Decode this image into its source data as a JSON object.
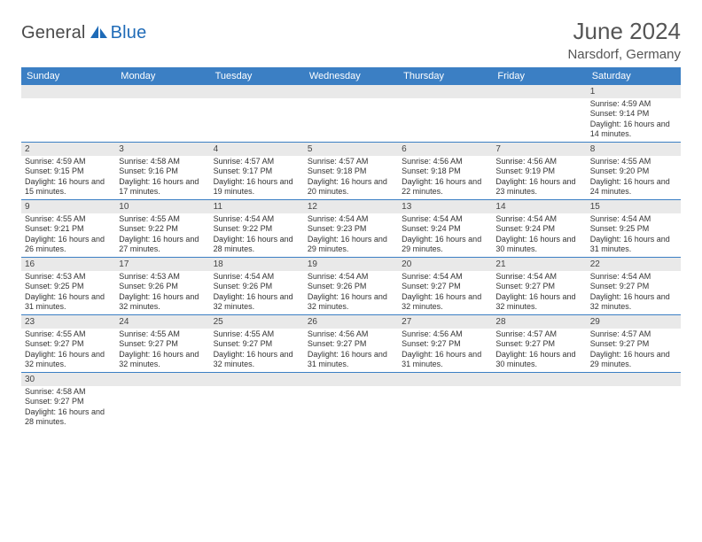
{
  "brand": {
    "text_dark": "General",
    "text_blue": "Blue"
  },
  "title": "June 2024",
  "location": "Narsdorf, Germany",
  "colors": {
    "header_bg": "#3b7fc4",
    "header_text": "#ffffff",
    "daynum_bg": "#e9e9e9",
    "divider": "#3b7fc4",
    "body_text": "#333333",
    "title_text": "#555555"
  },
  "day_headers": [
    "Sunday",
    "Monday",
    "Tuesday",
    "Wednesday",
    "Thursday",
    "Friday",
    "Saturday"
  ],
  "weeks": [
    [
      {
        "n": "",
        "sr": "",
        "ss": "",
        "dl": ""
      },
      {
        "n": "",
        "sr": "",
        "ss": "",
        "dl": ""
      },
      {
        "n": "",
        "sr": "",
        "ss": "",
        "dl": ""
      },
      {
        "n": "",
        "sr": "",
        "ss": "",
        "dl": ""
      },
      {
        "n": "",
        "sr": "",
        "ss": "",
        "dl": ""
      },
      {
        "n": "",
        "sr": "",
        "ss": "",
        "dl": ""
      },
      {
        "n": "1",
        "sr": "Sunrise: 4:59 AM",
        "ss": "Sunset: 9:14 PM",
        "dl": "Daylight: 16 hours and 14 minutes."
      }
    ],
    [
      {
        "n": "2",
        "sr": "Sunrise: 4:59 AM",
        "ss": "Sunset: 9:15 PM",
        "dl": "Daylight: 16 hours and 15 minutes."
      },
      {
        "n": "3",
        "sr": "Sunrise: 4:58 AM",
        "ss": "Sunset: 9:16 PM",
        "dl": "Daylight: 16 hours and 17 minutes."
      },
      {
        "n": "4",
        "sr": "Sunrise: 4:57 AM",
        "ss": "Sunset: 9:17 PM",
        "dl": "Daylight: 16 hours and 19 minutes."
      },
      {
        "n": "5",
        "sr": "Sunrise: 4:57 AM",
        "ss": "Sunset: 9:18 PM",
        "dl": "Daylight: 16 hours and 20 minutes."
      },
      {
        "n": "6",
        "sr": "Sunrise: 4:56 AM",
        "ss": "Sunset: 9:18 PM",
        "dl": "Daylight: 16 hours and 22 minutes."
      },
      {
        "n": "7",
        "sr": "Sunrise: 4:56 AM",
        "ss": "Sunset: 9:19 PM",
        "dl": "Daylight: 16 hours and 23 minutes."
      },
      {
        "n": "8",
        "sr": "Sunrise: 4:55 AM",
        "ss": "Sunset: 9:20 PM",
        "dl": "Daylight: 16 hours and 24 minutes."
      }
    ],
    [
      {
        "n": "9",
        "sr": "Sunrise: 4:55 AM",
        "ss": "Sunset: 9:21 PM",
        "dl": "Daylight: 16 hours and 26 minutes."
      },
      {
        "n": "10",
        "sr": "Sunrise: 4:55 AM",
        "ss": "Sunset: 9:22 PM",
        "dl": "Daylight: 16 hours and 27 minutes."
      },
      {
        "n": "11",
        "sr": "Sunrise: 4:54 AM",
        "ss": "Sunset: 9:22 PM",
        "dl": "Daylight: 16 hours and 28 minutes."
      },
      {
        "n": "12",
        "sr": "Sunrise: 4:54 AM",
        "ss": "Sunset: 9:23 PM",
        "dl": "Daylight: 16 hours and 29 minutes."
      },
      {
        "n": "13",
        "sr": "Sunrise: 4:54 AM",
        "ss": "Sunset: 9:24 PM",
        "dl": "Daylight: 16 hours and 29 minutes."
      },
      {
        "n": "14",
        "sr": "Sunrise: 4:54 AM",
        "ss": "Sunset: 9:24 PM",
        "dl": "Daylight: 16 hours and 30 minutes."
      },
      {
        "n": "15",
        "sr": "Sunrise: 4:54 AM",
        "ss": "Sunset: 9:25 PM",
        "dl": "Daylight: 16 hours and 31 minutes."
      }
    ],
    [
      {
        "n": "16",
        "sr": "Sunrise: 4:53 AM",
        "ss": "Sunset: 9:25 PM",
        "dl": "Daylight: 16 hours and 31 minutes."
      },
      {
        "n": "17",
        "sr": "Sunrise: 4:53 AM",
        "ss": "Sunset: 9:26 PM",
        "dl": "Daylight: 16 hours and 32 minutes."
      },
      {
        "n": "18",
        "sr": "Sunrise: 4:54 AM",
        "ss": "Sunset: 9:26 PM",
        "dl": "Daylight: 16 hours and 32 minutes."
      },
      {
        "n": "19",
        "sr": "Sunrise: 4:54 AM",
        "ss": "Sunset: 9:26 PM",
        "dl": "Daylight: 16 hours and 32 minutes."
      },
      {
        "n": "20",
        "sr": "Sunrise: 4:54 AM",
        "ss": "Sunset: 9:27 PM",
        "dl": "Daylight: 16 hours and 32 minutes."
      },
      {
        "n": "21",
        "sr": "Sunrise: 4:54 AM",
        "ss": "Sunset: 9:27 PM",
        "dl": "Daylight: 16 hours and 32 minutes."
      },
      {
        "n": "22",
        "sr": "Sunrise: 4:54 AM",
        "ss": "Sunset: 9:27 PM",
        "dl": "Daylight: 16 hours and 32 minutes."
      }
    ],
    [
      {
        "n": "23",
        "sr": "Sunrise: 4:55 AM",
        "ss": "Sunset: 9:27 PM",
        "dl": "Daylight: 16 hours and 32 minutes."
      },
      {
        "n": "24",
        "sr": "Sunrise: 4:55 AM",
        "ss": "Sunset: 9:27 PM",
        "dl": "Daylight: 16 hours and 32 minutes."
      },
      {
        "n": "25",
        "sr": "Sunrise: 4:55 AM",
        "ss": "Sunset: 9:27 PM",
        "dl": "Daylight: 16 hours and 32 minutes."
      },
      {
        "n": "26",
        "sr": "Sunrise: 4:56 AM",
        "ss": "Sunset: 9:27 PM",
        "dl": "Daylight: 16 hours and 31 minutes."
      },
      {
        "n": "27",
        "sr": "Sunrise: 4:56 AM",
        "ss": "Sunset: 9:27 PM",
        "dl": "Daylight: 16 hours and 31 minutes."
      },
      {
        "n": "28",
        "sr": "Sunrise: 4:57 AM",
        "ss": "Sunset: 9:27 PM",
        "dl": "Daylight: 16 hours and 30 minutes."
      },
      {
        "n": "29",
        "sr": "Sunrise: 4:57 AM",
        "ss": "Sunset: 9:27 PM",
        "dl": "Daylight: 16 hours and 29 minutes."
      }
    ],
    [
      {
        "n": "30",
        "sr": "Sunrise: 4:58 AM",
        "ss": "Sunset: 9:27 PM",
        "dl": "Daylight: 16 hours and 28 minutes."
      },
      {
        "n": "",
        "sr": "",
        "ss": "",
        "dl": ""
      },
      {
        "n": "",
        "sr": "",
        "ss": "",
        "dl": ""
      },
      {
        "n": "",
        "sr": "",
        "ss": "",
        "dl": ""
      },
      {
        "n": "",
        "sr": "",
        "ss": "",
        "dl": ""
      },
      {
        "n": "",
        "sr": "",
        "ss": "",
        "dl": ""
      },
      {
        "n": "",
        "sr": "",
        "ss": "",
        "dl": ""
      }
    ]
  ]
}
